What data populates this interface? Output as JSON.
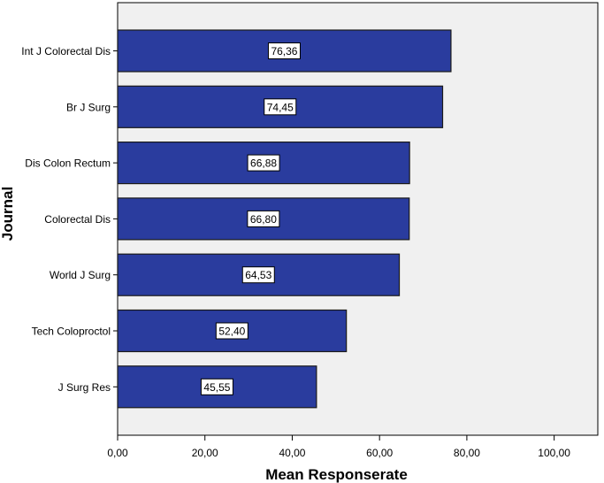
{
  "chart_data": {
    "type": "bar",
    "orientation": "horizontal",
    "categories": [
      "Int J Colorectal Dis",
      "Br J Surg",
      "Dis Colon Rectum",
      "Colorectal Dis",
      "World J Surg",
      "Tech Coloproctol",
      "J Surg Res"
    ],
    "values": [
      76.36,
      74.45,
      66.88,
      66.8,
      64.53,
      52.4,
      45.55
    ],
    "data_labels": [
      "76,36",
      "74,45",
      "66,88",
      "66,80",
      "64,53",
      "52,40",
      "45,55"
    ],
    "xlabel": "Mean Responserate",
    "ylabel": "Journal",
    "xlim": [
      0,
      110
    ],
    "x_ticks": [
      0,
      20,
      40,
      60,
      80,
      100
    ],
    "x_tick_labels": [
      "0,00",
      "20,00",
      "40,00",
      "60,00",
      "80,00",
      "100,00"
    ],
    "grid": false,
    "legend": "none",
    "colors": {
      "bar_fill": "#2a3c9e",
      "bar_edge": "#1a1a1a",
      "plot_background": "#f0f0f0",
      "label_box_fill": "#ffffff"
    }
  }
}
